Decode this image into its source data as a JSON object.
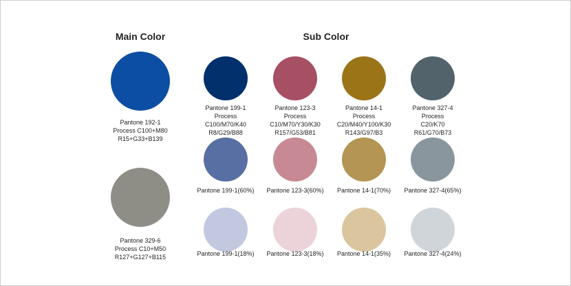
{
  "main_title": "Main Color",
  "sub_title": "Sub Color",
  "main_colors": [
    {
      "color": "#0c4ea3",
      "lines": [
        "Pantone 192-1",
        "Process C100+M80",
        "R15+G33+B139"
      ]
    },
    {
      "color": "#8f8e86",
      "lines": [
        "Pantone 329-6",
        "Process C10+M50",
        "R127+G127+B115"
      ]
    }
  ],
  "sub_columns": [
    {
      "swatches": [
        {
          "color": "#02306c",
          "lines": [
            "Pantone 199-1",
            "Process",
            "C100/M70/K40",
            "R8/G29/B88"
          ]
        },
        {
          "color": "#586fa3",
          "lines": [
            "Pantone 199-1(60%)"
          ]
        },
        {
          "color": "#c1c8df",
          "lines": [
            "Pantone 199-1(18%)"
          ]
        }
      ]
    },
    {
      "swatches": [
        {
          "color": "#a74f63",
          "lines": [
            "Pantone 123-3",
            "Process",
            "C10/M70/Y30/K30",
            "R157/G53/B81"
          ]
        },
        {
          "color": "#c78a94",
          "lines": [
            "Pantone 123-3(60%)"
          ]
        },
        {
          "color": "#ebd3d9",
          "lines": [
            "Pantone 123-3(18%)"
          ]
        }
      ]
    },
    {
      "swatches": [
        {
          "color": "#9b7418",
          "lines": [
            "Pantone 14-1",
            "Process",
            "C20/M40/Y100/K30",
            "R143/G97/B3"
          ]
        },
        {
          "color": "#b49553",
          "lines": [
            "Pantone 14-1(70%)"
          ]
        },
        {
          "color": "#dac59e",
          "lines": [
            "Pantone 14-1(35%)"
          ]
        }
      ]
    },
    {
      "swatches": [
        {
          "color": "#52636c",
          "lines": [
            "Pantone 327-4",
            "Process",
            "C20/K70",
            "R61/G70/B73"
          ]
        },
        {
          "color": "#8a969e",
          "lines": [
            "Pantone 327-4(65%)"
          ]
        },
        {
          "color": "#d0d5da",
          "lines": [
            "Pantone 327-4(24%)"
          ]
        }
      ]
    }
  ]
}
